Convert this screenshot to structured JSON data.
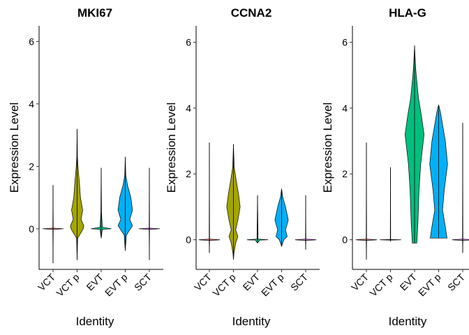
{
  "chart_data": [
    {
      "type": "violin",
      "title": "MKI67",
      "xlabel": "Identity",
      "ylabel": "Expression Level",
      "ylim": [
        -1.3,
        6.5
      ],
      "yticks": [
        0,
        2,
        4,
        6
      ],
      "categories": [
        "VCT",
        "VCT p",
        "EVT",
        "EVT p",
        "SCT"
      ],
      "colors": [
        "#F8766D",
        "#A3A500",
        "#00BF7D",
        "#00B0F6",
        "#E76BF3"
      ],
      "violins": [
        {
          "category": "VCT",
          "min": -1.1,
          "max": 1.4,
          "shape": [
            [
              -1.1,
              0
            ],
            [
              -0.02,
              0.02
            ],
            [
              0,
              0.95
            ],
            [
              0.02,
              0.02
            ],
            [
              1.4,
              0
            ]
          ]
        },
        {
          "category": "VCT p",
          "min": -1.0,
          "max": 3.2,
          "shape": [
            [
              -1.0,
              0
            ],
            [
              -0.3,
              0.05
            ],
            [
              0,
              0.55
            ],
            [
              0.1,
              0.6
            ],
            [
              0.3,
              0.35
            ],
            [
              0.6,
              0.5
            ],
            [
              1.0,
              0.3
            ],
            [
              1.5,
              0.2
            ],
            [
              1.9,
              0.1
            ],
            [
              2.3,
              0.03
            ],
            [
              3.2,
              0
            ]
          ]
        },
        {
          "category": "EVT",
          "min": -0.3,
          "max": 1.95,
          "shape": [
            [
              -0.3,
              0
            ],
            [
              -0.02,
              0.1
            ],
            [
              0,
              0.92
            ],
            [
              0.05,
              0.1
            ],
            [
              0.5,
              0.03
            ],
            [
              1.95,
              0
            ]
          ]
        },
        {
          "category": "EVT p",
          "min": -0.7,
          "max": 2.3,
          "shape": [
            [
              -0.7,
              0
            ],
            [
              -0.2,
              0.1
            ],
            [
              0.1,
              0.65
            ],
            [
              0.3,
              0.4
            ],
            [
              0.6,
              0.65
            ],
            [
              1.0,
              0.5
            ],
            [
              1.4,
              0.2
            ],
            [
              1.7,
              0.05
            ],
            [
              2.3,
              0
            ]
          ]
        },
        {
          "category": "SCT",
          "min": -1.0,
          "max": 1.95,
          "shape": [
            [
              -1.0,
              0
            ],
            [
              -0.02,
              0.02
            ],
            [
              0,
              0.95
            ],
            [
              0.02,
              0.02
            ],
            [
              1.95,
              0
            ]
          ]
        }
      ]
    },
    {
      "type": "violin",
      "title": "CCNA2",
      "xlabel": "Identity",
      "ylabel": "Expression Level",
      "ylim": [
        -0.9,
        6.5
      ],
      "yticks": [
        0,
        2,
        4,
        6
      ],
      "categories": [
        "VCT",
        "VCT p",
        "EVT",
        "EVT p",
        "SCT"
      ],
      "colors": [
        "#F8766D",
        "#A3A500",
        "#00BF7D",
        "#00B0F6",
        "#E76BF3"
      ],
      "violins": [
        {
          "category": "VCT",
          "min": -0.4,
          "max": 2.95,
          "shape": [
            [
              -0.4,
              0
            ],
            [
              -0.02,
              0.02
            ],
            [
              0,
              0.95
            ],
            [
              0.02,
              0.02
            ],
            [
              2.95,
              0
            ]
          ]
        },
        {
          "category": "VCT p",
          "min": -0.6,
          "max": 2.9,
          "shape": [
            [
              -0.6,
              0
            ],
            [
              -0.4,
              0.05
            ],
            [
              -0.1,
              0.2
            ],
            [
              0.1,
              0.4
            ],
            [
              0.3,
              0.2
            ],
            [
              0.6,
              0.4
            ],
            [
              1.0,
              0.6
            ],
            [
              1.4,
              0.45
            ],
            [
              1.8,
              0.25
            ],
            [
              2.2,
              0.07
            ],
            [
              2.9,
              0
            ]
          ]
        },
        {
          "category": "EVT",
          "min": -0.1,
          "max": 1.35,
          "shape": [
            [
              -0.1,
              0
            ],
            [
              -0.01,
              0.2
            ],
            [
              0,
              0.95
            ],
            [
              0.02,
              0.05
            ],
            [
              1.35,
              0
            ]
          ]
        },
        {
          "category": "EVT p",
          "min": -0.2,
          "max": 1.55,
          "shape": [
            [
              -0.2,
              0
            ],
            [
              0,
              0.2
            ],
            [
              0.1,
              0.5
            ],
            [
              0.3,
              0.35
            ],
            [
              0.6,
              0.6
            ],
            [
              1.0,
              0.35
            ],
            [
              1.3,
              0.1
            ],
            [
              1.55,
              0
            ]
          ]
        },
        {
          "category": "SCT",
          "min": -0.3,
          "max": 1.35,
          "shape": [
            [
              -0.3,
              0
            ],
            [
              -0.02,
              0.02
            ],
            [
              0,
              0.95
            ],
            [
              0.02,
              0.02
            ],
            [
              1.35,
              0
            ]
          ]
        }
      ]
    },
    {
      "type": "violin",
      "title": "HLA-G",
      "xlabel": "Identity",
      "ylabel": "Expression Level",
      "ylim": [
        -0.9,
        6.5
      ],
      "yticks": [
        0,
        2,
        4,
        6
      ],
      "categories": [
        "VCT",
        "VCT p",
        "EVT",
        "EVT p",
        "SCT"
      ],
      "colors": [
        "#F8766D",
        "#A3A500",
        "#00BF7D",
        "#00B0F6",
        "#E76BF3"
      ],
      "violins": [
        {
          "category": "VCT",
          "min": -0.6,
          "max": 2.95,
          "shape": [
            [
              -0.6,
              0
            ],
            [
              -0.02,
              0.02
            ],
            [
              0,
              0.95
            ],
            [
              0.02,
              0.02
            ],
            [
              2.95,
              0
            ]
          ]
        },
        {
          "category": "VCT p",
          "min": -0.05,
          "max": 2.2,
          "shape": [
            [
              -0.05,
              0
            ],
            [
              -0.01,
              0.02
            ],
            [
              0,
              0.95
            ],
            [
              0.01,
              0.02
            ],
            [
              2.2,
              0
            ]
          ]
        },
        {
          "category": "EVT",
          "min": -0.1,
          "max": 5.9,
          "shape": [
            [
              -0.1,
              0.2
            ],
            [
              0.5,
              0.3
            ],
            [
              1.5,
              0.4
            ],
            [
              2.3,
              0.55
            ],
            [
              3.2,
              0.85
            ],
            [
              3.8,
              0.6
            ],
            [
              4.3,
              0.35
            ],
            [
              5.0,
              0.15
            ],
            [
              5.3,
              0.08
            ],
            [
              5.9,
              0
            ]
          ]
        },
        {
          "category": "EVT p",
          "min": 0.05,
          "max": 4.1,
          "shape": [
            [
              0.05,
              0.75
            ],
            [
              0.4,
              0.6
            ],
            [
              0.9,
              0.35
            ],
            [
              1.5,
              0.5
            ],
            [
              2.3,
              0.8
            ],
            [
              3.0,
              0.6
            ],
            [
              3.6,
              0.3
            ],
            [
              3.9,
              0.15
            ],
            [
              4.1,
              0
            ]
          ]
        },
        {
          "category": "SCT",
          "min": -0.4,
          "max": 3.55,
          "shape": [
            [
              -0.4,
              0
            ],
            [
              -0.02,
              0.02
            ],
            [
              0,
              0.95
            ],
            [
              0.02,
              0.02
            ],
            [
              3.55,
              0
            ]
          ]
        }
      ]
    }
  ]
}
